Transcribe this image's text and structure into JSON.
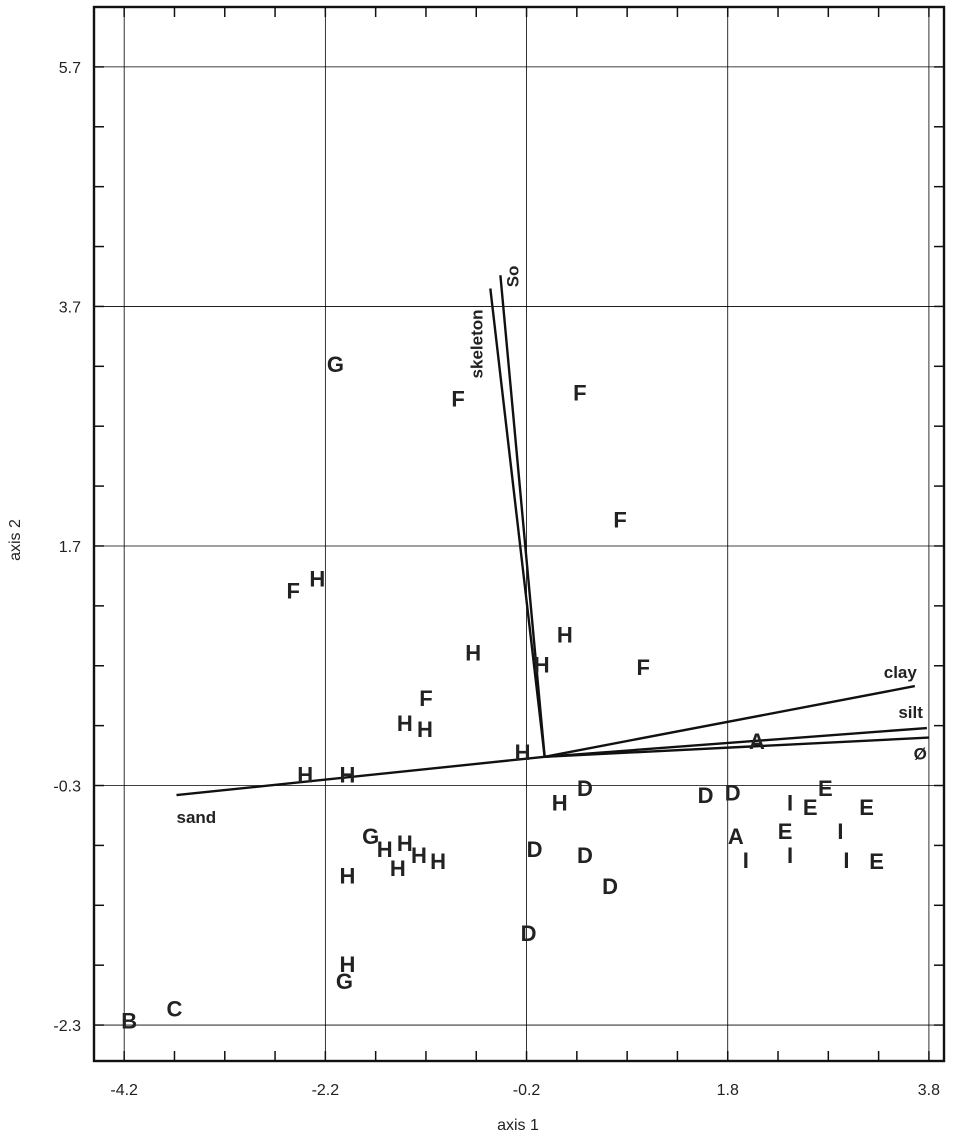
{
  "chart_data": {
    "type": "scatter",
    "title": "",
    "xlabel": "axis 1",
    "ylabel": "axis 2",
    "xlim": [
      -4.5,
      3.95
    ],
    "ylim": [
      -2.6,
      6.2
    ],
    "grid": true,
    "x_ticks": [
      {
        "value": -4.2,
        "label": "-4.2"
      },
      {
        "value": -2.2,
        "label": "-2.2"
      },
      {
        "value": -0.2,
        "label": "-0.2"
      },
      {
        "value": 1.8,
        "label": "1.8"
      },
      {
        "value": 3.8,
        "label": "3.8"
      }
    ],
    "y_ticks": [
      {
        "value": 5.7,
        "label": "5.7"
      },
      {
        "value": 3.7,
        "label": "3.7"
      },
      {
        "value": 1.7,
        "label": "1.7"
      },
      {
        "value": -0.3,
        "label": "-0.3"
      },
      {
        "value": -2.3,
        "label": "-2.3"
      }
    ],
    "minor_tick_step": 0.5,
    "points": [
      {
        "label": "G",
        "x": -2.1,
        "y": 3.22
      },
      {
        "label": "F",
        "x": -0.88,
        "y": 2.93
      },
      {
        "label": "F",
        "x": 0.33,
        "y": 2.98
      },
      {
        "label": "F",
        "x": 0.73,
        "y": 1.92
      },
      {
        "label": "F",
        "x": -2.52,
        "y": 1.33
      },
      {
        "label": "H",
        "x": -2.28,
        "y": 1.43
      },
      {
        "label": "H",
        "x": 0.18,
        "y": 0.96
      },
      {
        "label": "H",
        "x": -0.73,
        "y": 0.81
      },
      {
        "label": "H",
        "x": -0.05,
        "y": 0.71
      },
      {
        "label": "F",
        "x": 0.96,
        "y": 0.69
      },
      {
        "label": "F",
        "x": -1.2,
        "y": 0.43
      },
      {
        "label": "H",
        "x": -1.41,
        "y": 0.22
      },
      {
        "label": "H",
        "x": -1.21,
        "y": 0.17
      },
      {
        "label": "H",
        "x": -0.24,
        "y": -0.02
      },
      {
        "label": "A",
        "x": 2.09,
        "y": 0.07
      },
      {
        "label": "H",
        "x": -2.4,
        "y": -0.21
      },
      {
        "label": "H",
        "x": -1.98,
        "y": -0.21
      },
      {
        "label": "D",
        "x": 0.38,
        "y": -0.32
      },
      {
        "label": "H",
        "x": 0.13,
        "y": -0.44
      },
      {
        "label": "D",
        "x": 1.58,
        "y": -0.38
      },
      {
        "label": "D",
        "x": 1.85,
        "y": -0.36
      },
      {
        "label": "I",
        "x": 2.42,
        "y": -0.44
      },
      {
        "label": "E",
        "x": 2.77,
        "y": -0.32
      },
      {
        "label": "E",
        "x": 2.62,
        "y": -0.48
      },
      {
        "label": "E",
        "x": 3.18,
        "y": -0.48
      },
      {
        "label": "G",
        "x": -1.75,
        "y": -0.72
      },
      {
        "label": "A",
        "x": 1.88,
        "y": -0.72
      },
      {
        "label": "E",
        "x": 2.37,
        "y": -0.68
      },
      {
        "label": "I",
        "x": 2.92,
        "y": -0.68
      },
      {
        "label": "H",
        "x": -1.61,
        "y": -0.83
      },
      {
        "label": "H",
        "x": -1.41,
        "y": -0.78
      },
      {
        "label": "H",
        "x": -1.27,
        "y": -0.88
      },
      {
        "label": "H",
        "x": -1.08,
        "y": -0.93
      },
      {
        "label": "H",
        "x": -1.48,
        "y": -0.99
      },
      {
        "label": "D",
        "x": -0.12,
        "y": -0.83
      },
      {
        "label": "D",
        "x": 0.38,
        "y": -0.88
      },
      {
        "label": "I",
        "x": 1.98,
        "y": -0.92
      },
      {
        "label": "I",
        "x": 2.42,
        "y": -0.88
      },
      {
        "label": "I",
        "x": 2.98,
        "y": -0.92
      },
      {
        "label": "E",
        "x": 3.28,
        "y": -0.93
      },
      {
        "label": "H",
        "x": -1.98,
        "y": -1.05
      },
      {
        "label": "D",
        "x": 0.63,
        "y": -1.14
      },
      {
        "label": "D",
        "x": -0.18,
        "y": -1.53
      },
      {
        "label": "H",
        "x": -1.98,
        "y": -1.79
      },
      {
        "label": "G",
        "x": -2.01,
        "y": -1.93
      },
      {
        "label": "C",
        "x": -3.7,
        "y": -2.16
      },
      {
        "label": "B",
        "x": -4.15,
        "y": -2.26
      }
    ],
    "vectors": [
      {
        "label": "skeleton",
        "start": [
          -0.02,
          -0.06
        ],
        "end": [
          -0.56,
          3.85
        ]
      },
      {
        "label": "So",
        "start": [
          -0.02,
          -0.06
        ],
        "end": [
          -0.46,
          3.96
        ]
      },
      {
        "label": "clay",
        "start": [
          -0.02,
          -0.06
        ],
        "end": [
          3.66,
          0.53
        ]
      },
      {
        "label": "silt",
        "start": [
          -0.02,
          -0.06
        ],
        "end": [
          3.78,
          0.18
        ]
      },
      {
        "label": "Ø",
        "start": [
          -0.02,
          -0.06
        ],
        "end": [
          3.8,
          0.1
        ]
      },
      {
        "label": "sand",
        "start": [
          -0.02,
          -0.06
        ],
        "end": [
          -3.68,
          -0.38
        ]
      }
    ]
  }
}
